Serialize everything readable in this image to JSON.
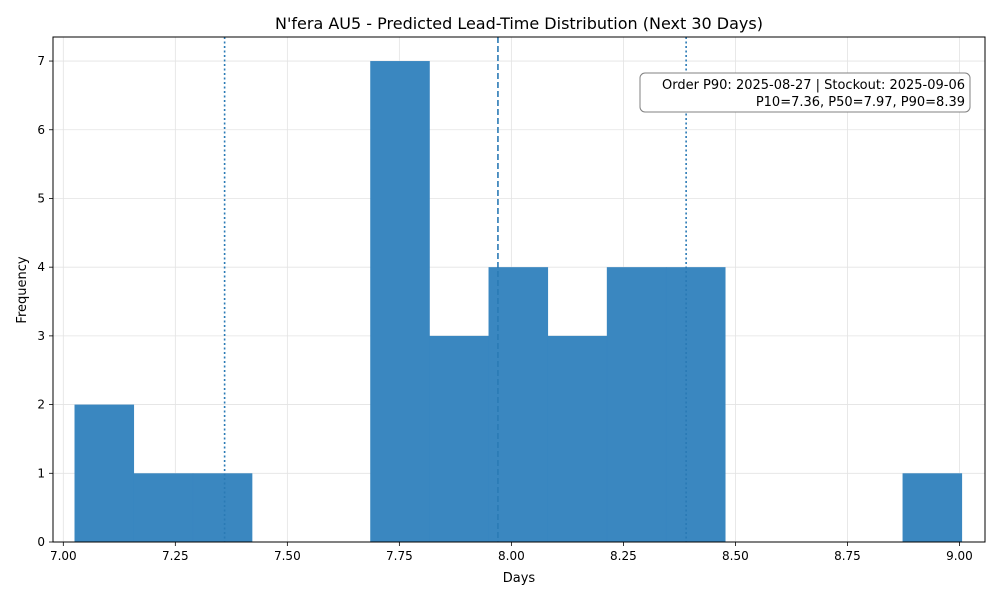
{
  "chart_data": {
    "type": "bar",
    "title": "N'fera AU5 - Predicted Lead-Time Distribution (Next 30 Days)",
    "xlabel": "Days",
    "ylabel": "Frequency",
    "xlim": [
      6.977,
      9.057
    ],
    "ylim": [
      0,
      7.35
    ],
    "xticks": [
      7.0,
      7.25,
      7.5,
      7.75,
      8.0,
      8.25,
      8.5,
      8.75,
      9.0
    ],
    "xtick_labels": [
      "7.00",
      "7.25",
      "7.50",
      "7.75",
      "8.00",
      "8.25",
      "8.50",
      "8.75",
      "9.00"
    ],
    "yticks": [
      0,
      1,
      2,
      3,
      4,
      5,
      6,
      7
    ],
    "ytick_labels": [
      "0",
      "1",
      "2",
      "3",
      "4",
      "5",
      "6",
      "7"
    ],
    "bins": [
      {
        "x0": 7.025,
        "x1": 7.157,
        "count": 2
      },
      {
        "x0": 7.157,
        "x1": 7.289,
        "count": 1
      },
      {
        "x0": 7.289,
        "x1": 7.421,
        "count": 1
      },
      {
        "x0": 7.421,
        "x1": 7.553,
        "count": 0
      },
      {
        "x0": 7.553,
        "x1": 7.685,
        "count": 0
      },
      {
        "x0": 7.685,
        "x1": 7.817,
        "count": 7
      },
      {
        "x0": 7.817,
        "x1": 7.949,
        "count": 3
      },
      {
        "x0": 7.949,
        "x1": 8.081,
        "count": 4
      },
      {
        "x0": 8.081,
        "x1": 8.213,
        "count": 3
      },
      {
        "x0": 8.213,
        "x1": 8.345,
        "count": 4
      },
      {
        "x0": 8.345,
        "x1": 8.477,
        "count": 4
      },
      {
        "x0": 8.477,
        "x1": 8.609,
        "count": 0
      },
      {
        "x0": 8.609,
        "x1": 8.741,
        "count": 0
      },
      {
        "x0": 8.741,
        "x1": 8.873,
        "count": 0
      },
      {
        "x0": 8.873,
        "x1": 9.005,
        "count": 1
      }
    ],
    "reference_lines": [
      {
        "label": "P10",
        "value": 7.36,
        "style": "dotted"
      },
      {
        "label": "P50",
        "value": 7.97,
        "style": "dashed"
      },
      {
        "label": "P90",
        "value": 8.39,
        "style": "dotted"
      }
    ],
    "annotation": {
      "line1": "Order P90: 2025-08-27 | Stockout: 2025-09-06",
      "line2": "P10=7.36, P50=7.97, P90=8.39"
    },
    "grid": true,
    "colors": {
      "bar": "#3685bf",
      "line": "#2a7ab5",
      "grid": "#e3e3e3"
    }
  }
}
